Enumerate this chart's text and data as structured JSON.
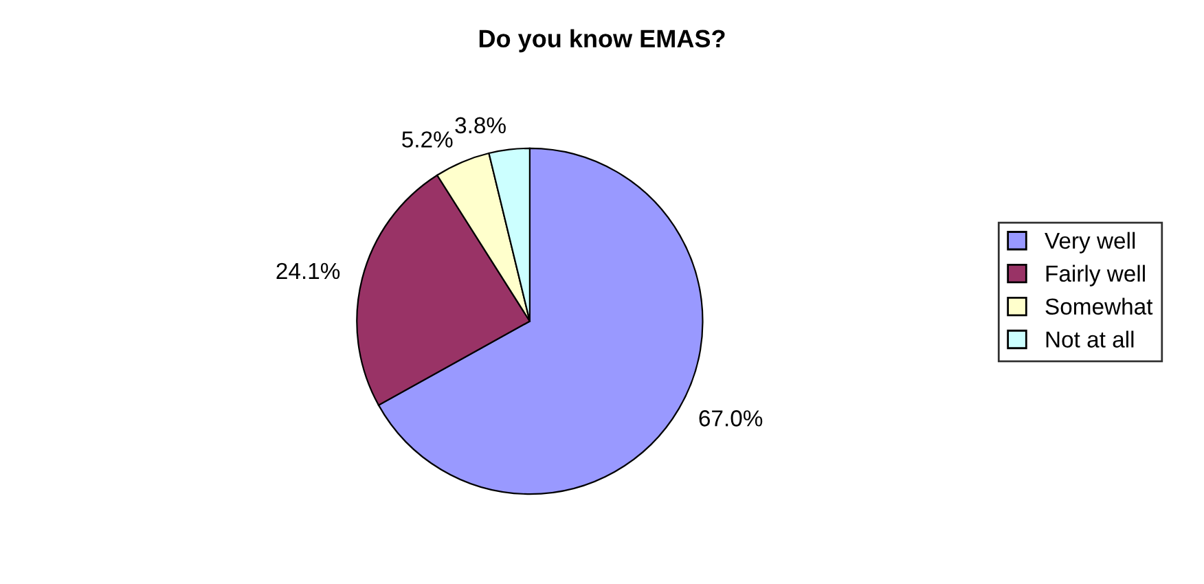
{
  "chart_data": {
    "type": "pie",
    "title": "Do you know EMAS?",
    "categories": [
      "Very well",
      "Fairly well",
      "Somewhat",
      "Not at all"
    ],
    "values": [
      67.0,
      24.1,
      5.2,
      3.8
    ],
    "value_labels": [
      "67.0%",
      "24.1%",
      "5.2%",
      "3.8%"
    ],
    "colors": [
      "#9999ff",
      "#993366",
      "#ffffcc",
      "#ccffff"
    ],
    "legend": "right"
  }
}
